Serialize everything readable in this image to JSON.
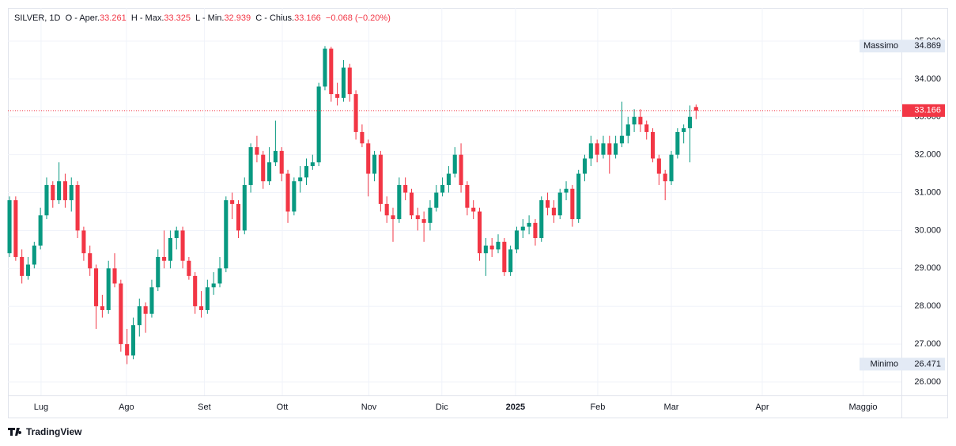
{
  "header": {
    "symbol": "SILVER, 1D",
    "open_label": "O - Aper.",
    "high_label": "H - Max.",
    "low_label": "L - Min.",
    "close_label": "C - Chius.",
    "change": "−0.068 (−0.20%)"
  },
  "chart_data": {
    "type": "candlestick",
    "up_color": "#089981",
    "down_color": "#f23645",
    "grid": true,
    "max_label": "Massimo",
    "min_label": "Minimo",
    "xlim": [
      -0.26,
      144.2
    ],
    "xticks": [
      {
        "value": 5.1,
        "label": "Lug"
      },
      {
        "value": 18.9,
        "label": "Ago"
      },
      {
        "value": 31.5,
        "label": "Set"
      },
      {
        "value": 44.1,
        "label": "Ott"
      },
      {
        "value": 58.1,
        "label": "Nov"
      },
      {
        "value": 69.9,
        "label": "Dic"
      },
      {
        "value": 81.8,
        "label": "2025"
      },
      {
        "value": 95.1,
        "label": "Feb"
      },
      {
        "value": 107.0,
        "label": "Mar"
      },
      {
        "value": 121.7,
        "label": "Apr"
      },
      {
        "value": 138.0,
        "label": "Maggio"
      }
    ],
    "ylim": [
      25.645,
      35.877
    ],
    "yticks": [
      {
        "value": 26,
        "label": "26.000"
      },
      {
        "value": 27,
        "label": "27.000"
      },
      {
        "value": 28,
        "label": "28.000"
      },
      {
        "value": 29,
        "label": "29.000"
      },
      {
        "value": 30,
        "label": "30.000"
      },
      {
        "value": 31,
        "label": "31.000"
      },
      {
        "value": 32,
        "label": "32.000"
      },
      {
        "value": 33,
        "label": "33.000"
      },
      {
        "value": 34,
        "label": "34.000"
      },
      {
        "value": 35,
        "label": "35.000"
      }
    ],
    "ohlc": [
      [
        29.4,
        30.9,
        29.3,
        30.8
      ],
      [
        30.8,
        30.9,
        29.2,
        29.3
      ],
      [
        29.3,
        29.5,
        28.6,
        28.8
      ],
      [
        28.8,
        29.3,
        28.7,
        29.1
      ],
      [
        29.1,
        29.7,
        29.0,
        29.6
      ],
      [
        29.6,
        30.6,
        29.5,
        30.4
      ],
      [
        30.4,
        31.4,
        30.3,
        31.2
      ],
      [
        31.2,
        31.3,
        30.6,
        30.8
      ],
      [
        30.8,
        31.8,
        30.7,
        31.3
      ],
      [
        31.3,
        31.5,
        30.6,
        30.8
      ],
      [
        30.8,
        31.4,
        30.5,
        31.2
      ],
      [
        31.2,
        31.3,
        29.8,
        30.0
      ],
      [
        30.0,
        30.1,
        29.2,
        29.4
      ],
      [
        29.4,
        29.6,
        28.8,
        29.0
      ],
      [
        29.0,
        29.1,
        27.4,
        28.0
      ],
      [
        28.0,
        28.3,
        27.7,
        27.9
      ],
      [
        27.9,
        29.2,
        27.8,
        29.0
      ],
      [
        29.0,
        29.4,
        28.5,
        28.6
      ],
      [
        28.6,
        28.7,
        26.8,
        27.0
      ],
      [
        27.0,
        27.4,
        26.471,
        26.7
      ],
      [
        26.7,
        27.7,
        26.6,
        27.5
      ],
      [
        27.5,
        28.2,
        27.2,
        28.0
      ],
      [
        28.0,
        28.1,
        27.3,
        27.8
      ],
      [
        27.8,
        28.7,
        27.7,
        28.5
      ],
      [
        28.5,
        29.5,
        28.4,
        29.3
      ],
      [
        29.3,
        30.0,
        29.0,
        29.2
      ],
      [
        29.2,
        30.0,
        29.0,
        29.8
      ],
      [
        29.8,
        30.1,
        29.5,
        30.0
      ],
      [
        30.0,
        30.1,
        29.0,
        29.2
      ],
      [
        29.2,
        29.3,
        28.7,
        28.8
      ],
      [
        28.8,
        28.9,
        27.8,
        28.0
      ],
      [
        28.0,
        28.4,
        27.7,
        27.9
      ],
      [
        27.9,
        28.7,
        27.8,
        28.5
      ],
      [
        28.5,
        28.9,
        28.3,
        28.6
      ],
      [
        28.6,
        29.3,
        28.5,
        29.0
      ],
      [
        29.0,
        30.9,
        28.9,
        30.8
      ],
      [
        30.8,
        31.0,
        30.3,
        30.7
      ],
      [
        30.7,
        30.8,
        29.8,
        30.0
      ],
      [
        30.0,
        31.4,
        29.9,
        31.2
      ],
      [
        31.2,
        32.3,
        31.0,
        32.2
      ],
      [
        32.2,
        32.5,
        31.8,
        32.0
      ],
      [
        32.0,
        32.1,
        31.1,
        31.3
      ],
      [
        31.3,
        32.2,
        31.2,
        31.8
      ],
      [
        31.8,
        32.9,
        31.7,
        32.1
      ],
      [
        32.1,
        32.2,
        31.3,
        31.5
      ],
      [
        31.5,
        31.6,
        30.2,
        30.5
      ],
      [
        30.5,
        31.4,
        30.4,
        31.3
      ],
      [
        31.3,
        31.7,
        31.0,
        31.4
      ],
      [
        31.4,
        31.9,
        31.2,
        31.7
      ],
      [
        31.7,
        32.0,
        31.6,
        31.8
      ],
      [
        31.8,
        33.9,
        31.7,
        33.8
      ],
      [
        33.8,
        34.869,
        33.7,
        34.8
      ],
      [
        34.8,
        34.85,
        33.4,
        33.6
      ],
      [
        33.6,
        33.9,
        33.3,
        33.5
      ],
      [
        33.5,
        34.5,
        33.4,
        34.3
      ],
      [
        34.3,
        34.4,
        33.4,
        33.6
      ],
      [
        33.6,
        33.7,
        32.4,
        32.6
      ],
      [
        32.6,
        32.8,
        32.2,
        32.3
      ],
      [
        32.3,
        32.4,
        30.9,
        31.5
      ],
      [
        31.5,
        32.1,
        31.3,
        32.0
      ],
      [
        32.0,
        32.1,
        30.5,
        30.7
      ],
      [
        30.7,
        30.9,
        30.2,
        30.4
      ],
      [
        30.4,
        30.6,
        29.7,
        30.3
      ],
      [
        30.3,
        31.4,
        30.2,
        31.2
      ],
      [
        31.2,
        31.4,
        30.8,
        31.0
      ],
      [
        31.0,
        31.1,
        30.3,
        30.4
      ],
      [
        30.4,
        30.6,
        30.0,
        30.3
      ],
      [
        30.3,
        30.5,
        29.7,
        30.2
      ],
      [
        30.2,
        30.8,
        30.0,
        30.6
      ],
      [
        30.6,
        31.2,
        30.5,
        31.0
      ],
      [
        31.0,
        31.4,
        30.9,
        31.2
      ],
      [
        31.2,
        31.7,
        31.0,
        31.5
      ],
      [
        31.5,
        32.2,
        31.4,
        32.0
      ],
      [
        32.0,
        32.3,
        31.0,
        31.2
      ],
      [
        31.2,
        31.3,
        30.4,
        30.6
      ],
      [
        30.6,
        30.8,
        30.3,
        30.5
      ],
      [
        30.5,
        30.6,
        29.2,
        29.4
      ],
      [
        29.4,
        29.8,
        28.8,
        29.6
      ],
      [
        29.6,
        29.8,
        29.3,
        29.5
      ],
      [
        29.5,
        29.9,
        29.4,
        29.7
      ],
      [
        29.7,
        29.8,
        28.8,
        28.9
      ],
      [
        28.9,
        29.6,
        28.8,
        29.5
      ],
      [
        29.5,
        30.1,
        29.4,
        30.0
      ],
      [
        30.0,
        30.3,
        29.8,
        30.1
      ],
      [
        30.1,
        30.4,
        29.9,
        30.2
      ],
      [
        30.2,
        30.3,
        29.6,
        29.8
      ],
      [
        29.8,
        30.9,
        29.7,
        30.8
      ],
      [
        30.8,
        31.0,
        30.4,
        30.6
      ],
      [
        30.6,
        30.8,
        30.2,
        30.4
      ],
      [
        30.4,
        31.1,
        30.3,
        31.0
      ],
      [
        31.0,
        31.3,
        30.8,
        31.1
      ],
      [
        31.1,
        31.2,
        30.1,
        30.3
      ],
      [
        30.3,
        31.6,
        30.2,
        31.5
      ],
      [
        31.5,
        32.0,
        31.3,
        31.9
      ],
      [
        31.9,
        32.5,
        31.7,
        32.3
      ],
      [
        32.3,
        32.4,
        31.8,
        32.0
      ],
      [
        32.0,
        32.5,
        31.9,
        32.3
      ],
      [
        32.3,
        32.5,
        31.5,
        32.0
      ],
      [
        32.0,
        32.5,
        31.9,
        32.3
      ],
      [
        32.3,
        33.4,
        32.2,
        32.5
      ],
      [
        32.5,
        33.0,
        32.3,
        32.8
      ],
      [
        32.8,
        33.2,
        32.6,
        33.0
      ],
      [
        33.0,
        33.2,
        32.6,
        32.8
      ],
      [
        32.8,
        32.9,
        32.4,
        32.6
      ],
      [
        32.6,
        32.7,
        31.8,
        31.9
      ],
      [
        31.9,
        32.0,
        31.2,
        31.5
      ],
      [
        31.5,
        31.6,
        30.8,
        31.3
      ],
      [
        31.3,
        32.1,
        31.2,
        32.0
      ],
      [
        32.0,
        32.7,
        31.9,
        32.6
      ],
      [
        32.6,
        32.8,
        32.3,
        32.7
      ],
      [
        32.7,
        33.3,
        31.8,
        33.0
      ],
      [
        33.261,
        33.325,
        32.939,
        33.166
      ]
    ]
  },
  "footer": {
    "brand": "TradingView"
  }
}
